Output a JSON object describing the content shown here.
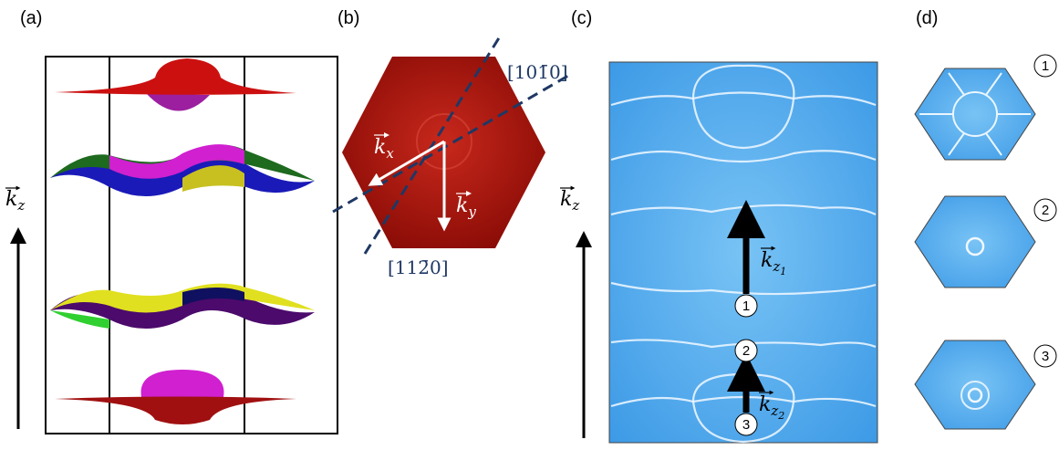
{
  "panels": {
    "a": {
      "label": "(a)",
      "axis": {
        "symbol": "k",
        "sub": "z"
      }
    },
    "b": {
      "label": "(b)",
      "kx": {
        "symbol": "k",
        "sub": "x"
      },
      "ky": {
        "symbol": "k",
        "sub": "y"
      },
      "dir1": "[101̄0]",
      "dir2": "[112̄0]"
    },
    "c": {
      "label": "(c)",
      "axis": {
        "symbol": "k",
        "sub": "z"
      },
      "kz1": {
        "symbol": "k",
        "sub": "z",
        "subsub": "1"
      },
      "kz2": {
        "symbol": "k",
        "sub": "z",
        "subsub": "2"
      },
      "markers": [
        "1",
        "2",
        "3"
      ]
    },
    "d": {
      "label": "(d)",
      "markers": [
        "1",
        "2",
        "3"
      ]
    }
  }
}
